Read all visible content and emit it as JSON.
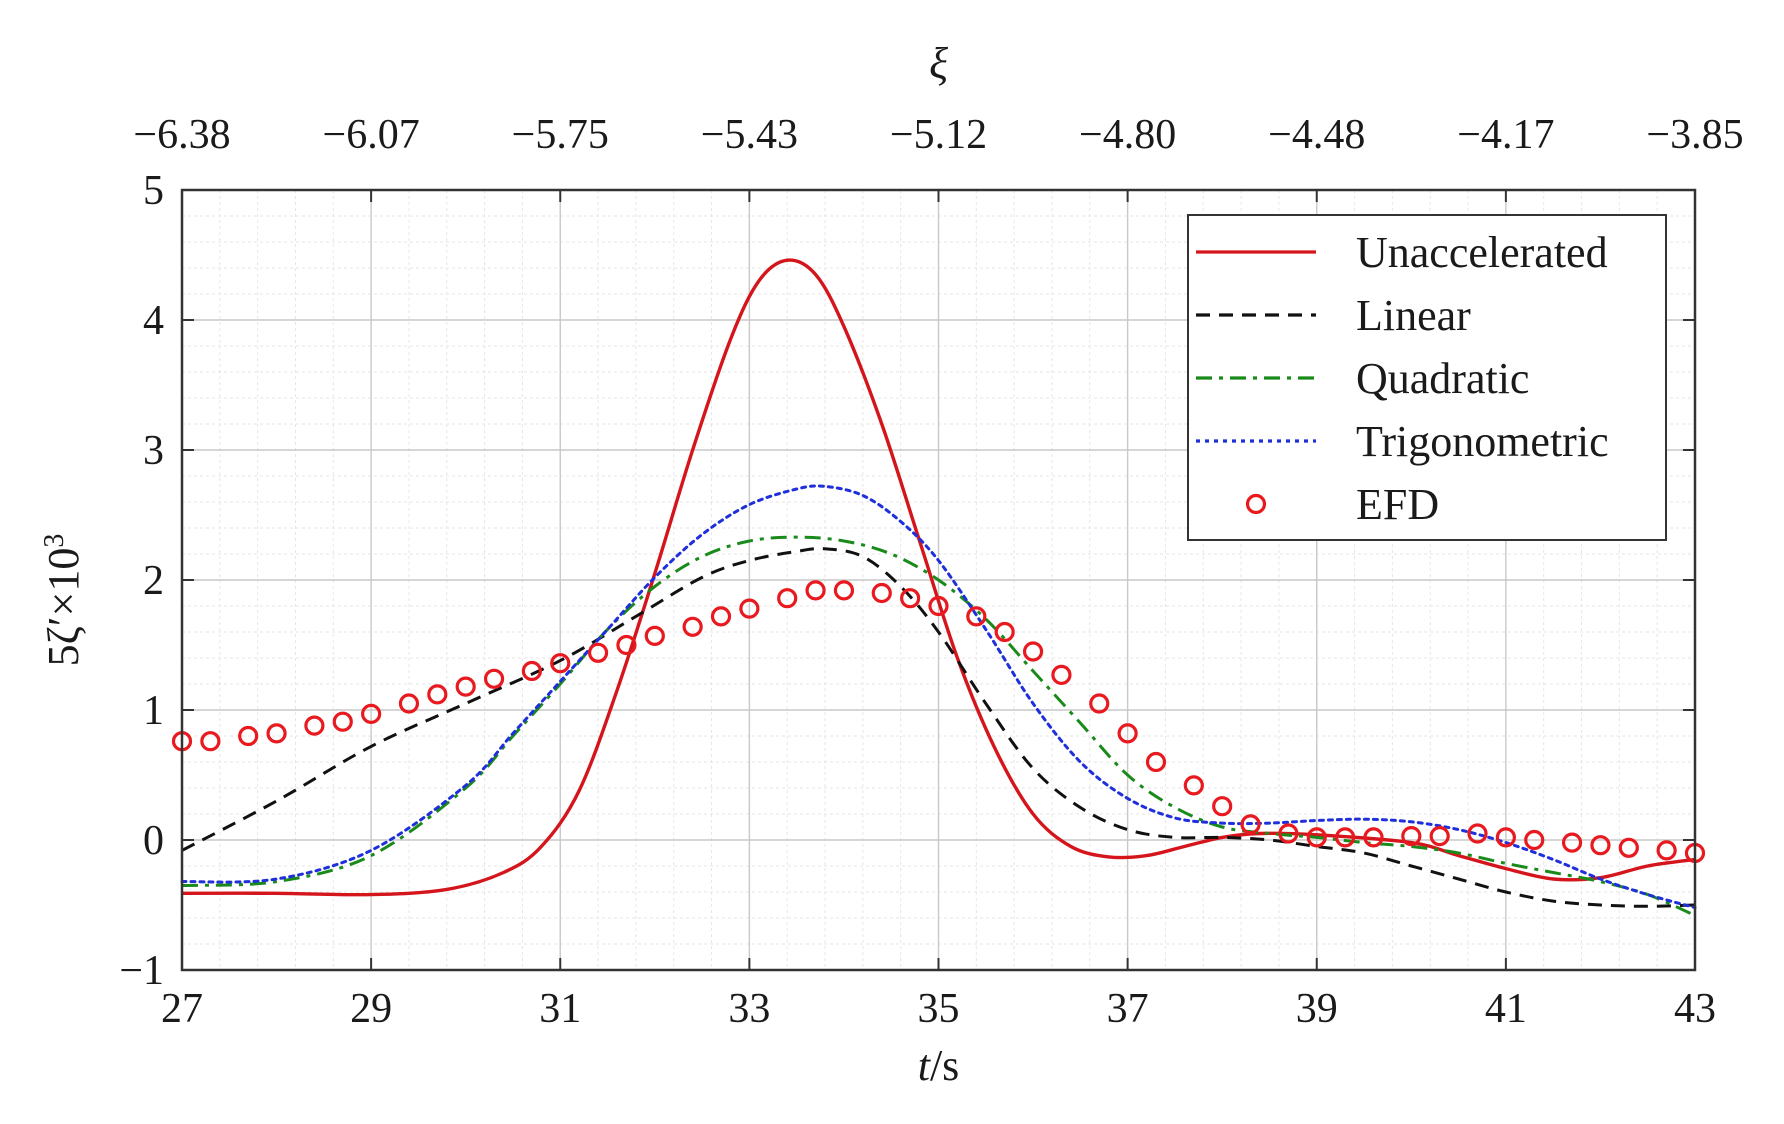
{
  "chart_data": {
    "type": "line",
    "xlabel_var": "t",
    "xlabel_unit": "/s",
    "top_xlabel": "ξ",
    "ylabel_main": "5ζ′×10",
    "ylabel_sup": "3",
    "xlim": [
      27,
      43
    ],
    "ylim": [
      -1,
      5
    ],
    "grid": true,
    "legend_position": "top-right",
    "x_ticks": [
      27,
      29,
      31,
      33,
      35,
      37,
      39,
      41,
      43
    ],
    "x_tick_labels": [
      "27",
      "29",
      "31",
      "33",
      "35",
      "37",
      "39",
      "41",
      "43"
    ],
    "y_ticks": [
      -1,
      0,
      1,
      2,
      3,
      4,
      5
    ],
    "y_tick_labels": [
      "−1",
      "0",
      "1",
      "2",
      "3",
      "4",
      "5"
    ],
    "top_ticks": [
      27,
      29,
      31,
      33,
      35,
      37,
      39,
      41,
      43
    ],
    "top_tick_labels": [
      "−6.38",
      "−6.07",
      "−5.75",
      "−5.43",
      "−5.12",
      "−4.80",
      "−4.48",
      "−4.17",
      "−3.85"
    ],
    "series": [
      {
        "name": "Unaccelerated",
        "style": "solid",
        "color": "#d4161c",
        "x": [
          27,
          28,
          29,
          29.8,
          30.4,
          30.8,
          31.2,
          31.6,
          32,
          32.4,
          32.8,
          33.1,
          33.4,
          33.7,
          34,
          34.4,
          34.8,
          35.2,
          35.6,
          36,
          36.4,
          36.8,
          37.2,
          37.6,
          38,
          38.4,
          39,
          40,
          40.5,
          41,
          41.5,
          42,
          42.5,
          43
        ],
        "y": [
          -0.41,
          -0.41,
          -0.42,
          -0.38,
          -0.25,
          -0.05,
          0.38,
          1.15,
          2.05,
          3.0,
          3.85,
          4.3,
          4.46,
          4.35,
          3.95,
          3.2,
          2.3,
          1.4,
          0.7,
          0.2,
          -0.05,
          -0.13,
          -0.12,
          -0.05,
          0.02,
          0.05,
          0.04,
          -0.02,
          -0.12,
          -0.22,
          -0.3,
          -0.29,
          -0.2,
          -0.15
        ]
      },
      {
        "name": "Linear",
        "style": "dashed",
        "color": "#111111",
        "x": [
          27,
          28,
          29,
          30,
          31,
          31.8,
          32.5,
          33,
          33.5,
          33.8,
          34.2,
          34.6,
          35,
          35.5,
          36,
          36.5,
          37,
          37.5,
          38,
          38.5,
          39,
          39.5,
          40,
          40.5,
          41,
          41.5,
          42,
          42.5,
          43
        ],
        "y": [
          -0.08,
          0.3,
          0.72,
          1.05,
          1.38,
          1.72,
          2.02,
          2.15,
          2.22,
          2.24,
          2.18,
          1.95,
          1.6,
          1.05,
          0.55,
          0.25,
          0.08,
          0.02,
          0.02,
          0.0,
          -0.05,
          -0.1,
          -0.2,
          -0.3,
          -0.4,
          -0.47,
          -0.5,
          -0.51,
          -0.5
        ]
      },
      {
        "name": "Quadratic",
        "style": "dashdot",
        "color": "#1a8a1a",
        "x": [
          27,
          28,
          29,
          30,
          30.5,
          31,
          31.5,
          32,
          32.5,
          33,
          33.5,
          34,
          34.5,
          35,
          35.5,
          36,
          36.5,
          37,
          37.5,
          38,
          38.5,
          39,
          39.5,
          40,
          40.5,
          41,
          41.5,
          42,
          42.5,
          43
        ],
        "y": [
          -0.35,
          -0.32,
          -0.12,
          0.4,
          0.8,
          1.2,
          1.62,
          1.95,
          2.18,
          2.3,
          2.33,
          2.3,
          2.2,
          2.0,
          1.7,
          1.3,
          0.9,
          0.5,
          0.25,
          0.1,
          0.05,
          0.02,
          -0.02,
          -0.05,
          -0.1,
          -0.18,
          -0.25,
          -0.32,
          -0.42,
          -0.58
        ]
      },
      {
        "name": "Trigonometric",
        "style": "dotted",
        "color": "#1f2fdc",
        "x": [
          27,
          28,
          29,
          30,
          30.5,
          31,
          31.5,
          32,
          32.5,
          33,
          33.5,
          33.8,
          34.2,
          34.6,
          35,
          35.5,
          36,
          36.5,
          37,
          37.5,
          38,
          38.5,
          39,
          39.5,
          40,
          40.5,
          41,
          41.5,
          42,
          42.5,
          43
        ],
        "y": [
          -0.32,
          -0.3,
          -0.08,
          0.42,
          0.82,
          1.22,
          1.62,
          2.02,
          2.35,
          2.58,
          2.7,
          2.72,
          2.65,
          2.45,
          2.15,
          1.62,
          1.05,
          0.6,
          0.32,
          0.17,
          0.13,
          0.13,
          0.15,
          0.16,
          0.14,
          0.08,
          -0.02,
          -0.15,
          -0.3,
          -0.42,
          -0.52
        ]
      },
      {
        "name": "EFD",
        "style": "markers",
        "color": "#e8191f",
        "x": [
          27,
          27.3,
          27.7,
          28,
          28.4,
          28.7,
          29,
          29.4,
          29.7,
          30,
          30.3,
          30.7,
          31,
          31.4,
          31.7,
          32,
          32.4,
          32.7,
          33,
          33.4,
          33.7,
          34,
          34.4,
          34.7,
          35,
          35.4,
          35.7,
          36,
          36.3,
          36.7,
          37,
          37.3,
          37.7,
          38,
          38.3,
          38.7,
          39,
          39.3,
          39.6,
          40,
          40.3,
          40.7,
          41,
          41.3,
          41.7,
          42,
          42.3,
          42.7,
          43
        ],
        "y": [
          0.76,
          0.76,
          0.8,
          0.82,
          0.88,
          0.91,
          0.97,
          1.05,
          1.12,
          1.18,
          1.24,
          1.3,
          1.36,
          1.44,
          1.5,
          1.57,
          1.64,
          1.72,
          1.78,
          1.86,
          1.92,
          1.92,
          1.9,
          1.86,
          1.8,
          1.72,
          1.6,
          1.45,
          1.27,
          1.05,
          0.82,
          0.6,
          0.42,
          0.26,
          0.12,
          0.05,
          0.02,
          0.02,
          0.02,
          0.03,
          0.03,
          0.05,
          0.02,
          0.0,
          -0.02,
          -0.04,
          -0.06,
          -0.08,
          -0.1
        ]
      }
    ]
  }
}
